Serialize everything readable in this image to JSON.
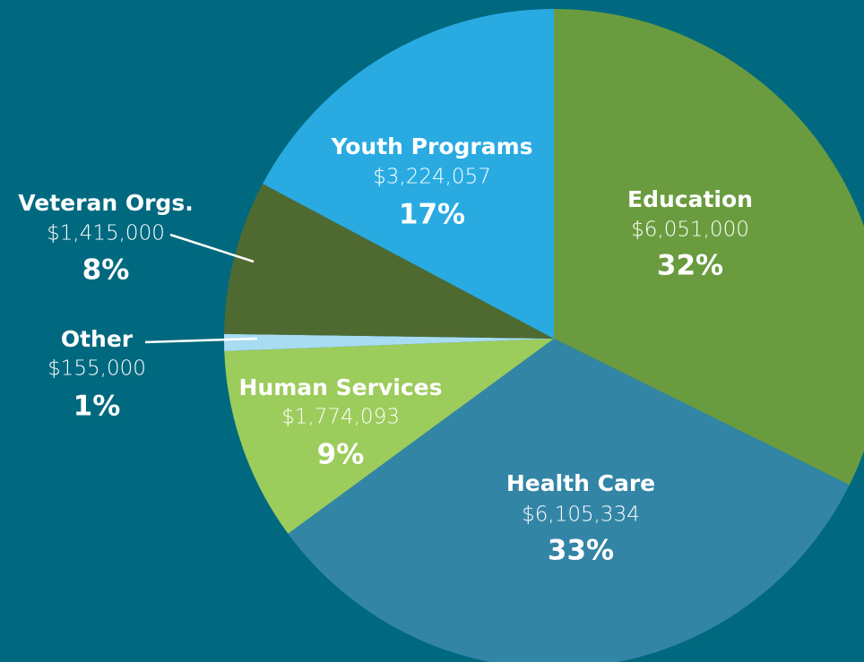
{
  "chart_data": {
    "type": "pie",
    "categories": [
      "Education",
      "Health Care",
      "Human Services",
      "Other",
      "Veteran Orgs.",
      "Youth Programs"
    ],
    "values": [
      6051000,
      6105334,
      1774093,
      155000,
      1415000,
      3224057
    ],
    "value_labels": [
      "$6,051,000",
      "$6,105,334",
      "$1,774,093",
      "$155,000",
      "$1,415,000",
      "$3,224,057"
    ],
    "percents": [
      32,
      33,
      9,
      1,
      8,
      17
    ],
    "percent_labels": [
      "32%",
      "33%",
      "9%",
      "1%",
      "8%",
      "17%"
    ],
    "colors": [
      "#6a9c3f",
      "#3385a6",
      "#9ccc5c",
      "#a8dcf3",
      "#4f6a31",
      "#29abe2"
    ]
  }
}
